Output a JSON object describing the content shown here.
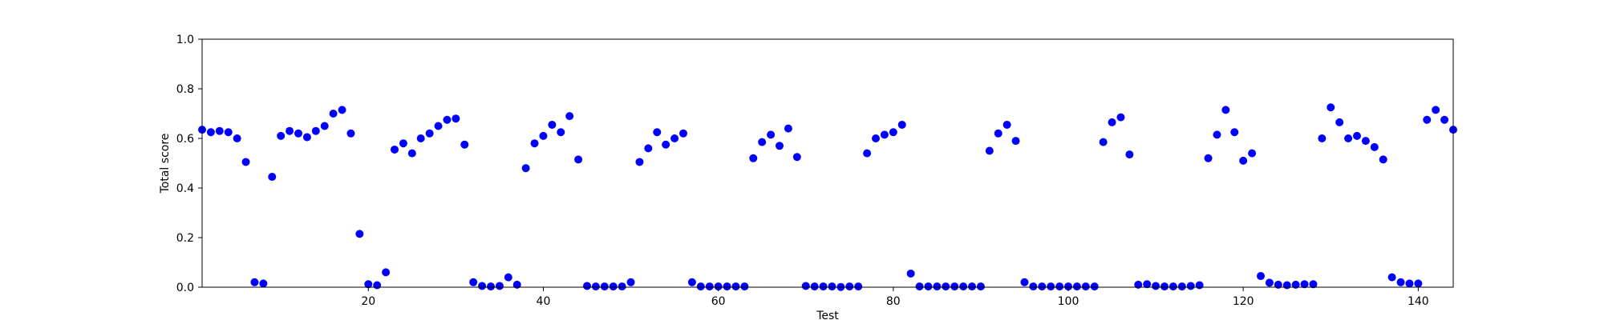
{
  "chart_data": {
    "type": "scatter",
    "title": "",
    "xlabel": "Test",
    "ylabel": "Total score",
    "xlim": [
      1,
      144
    ],
    "ylim": [
      0,
      1.0
    ],
    "xticks": [
      20,
      40,
      60,
      80,
      100,
      120,
      140
    ],
    "yticks": [
      0.0,
      0.2,
      0.4,
      0.6,
      0.8,
      1.0
    ],
    "xtick_labels": [
      "20",
      "40",
      "60",
      "80",
      "100",
      "120",
      "140"
    ],
    "ytick_labels": [
      "0.0",
      "0.2",
      "0.4",
      "0.6",
      "0.8",
      "1.0"
    ],
    "grid": false,
    "marker_color": "#0000ff",
    "series": [
      {
        "x": [
          1,
          2,
          3,
          4,
          5,
          6,
          7,
          8,
          9,
          10,
          11,
          12,
          13,
          14,
          15,
          16,
          17,
          18,
          19,
          20,
          21,
          22,
          23,
          24,
          25,
          26,
          27,
          28,
          29,
          30,
          31,
          32,
          33,
          34,
          35,
          36,
          37,
          38,
          39,
          40,
          41,
          42,
          43,
          44,
          45,
          46,
          47,
          48,
          49,
          50,
          51,
          52,
          53,
          54,
          55,
          56,
          57,
          58,
          59,
          60,
          61,
          62,
          63,
          64,
          65,
          66,
          67,
          68,
          69,
          70,
          71,
          72,
          73,
          74,
          75,
          76,
          77,
          78,
          79,
          80,
          81,
          82,
          83,
          84,
          85,
          86,
          87,
          88,
          89,
          90,
          91,
          92,
          93,
          94,
          95,
          96,
          97,
          98,
          99,
          100,
          101,
          102,
          103,
          104,
          105,
          106,
          107,
          108,
          109,
          110,
          111,
          112,
          113,
          114,
          115,
          116,
          117,
          118,
          119,
          120,
          121,
          122,
          123,
          124,
          125,
          126,
          127,
          128,
          129,
          130,
          131,
          132,
          133,
          134,
          135,
          136,
          137,
          138,
          139,
          140,
          141,
          142,
          143,
          144
        ],
        "y": [
          0.635,
          0.625,
          0.63,
          0.625,
          0.6,
          0.505,
          0.02,
          0.015,
          0.445,
          0.61,
          0.63,
          0.62,
          0.605,
          0.63,
          0.65,
          0.7,
          0.715,
          0.62,
          0.215,
          0.012,
          0.008,
          0.06,
          0.555,
          0.58,
          0.54,
          0.6,
          0.62,
          0.65,
          0.675,
          0.68,
          0.575,
          0.02,
          0.005,
          0.003,
          0.005,
          0.04,
          0.01,
          0.48,
          0.58,
          0.61,
          0.655,
          0.625,
          0.69,
          0.515,
          0.005,
          0.003,
          0.003,
          0.003,
          0.003,
          0.02,
          0.505,
          0.56,
          0.625,
          0.575,
          0.6,
          0.62,
          0.02,
          0.003,
          0.003,
          0.003,
          0.003,
          0.003,
          0.003,
          0.52,
          0.585,
          0.615,
          0.57,
          0.64,
          0.525,
          0.005,
          0.003,
          0.003,
          0.003,
          0.001,
          0.003,
          0.003,
          0.54,
          0.6,
          0.615,
          0.625,
          0.655,
          0.055,
          0.003,
          0.003,
          0.003,
          0.003,
          0.003,
          0.003,
          0.003,
          0.003,
          0.55,
          0.62,
          0.655,
          0.59,
          0.02,
          0.003,
          0.003,
          0.003,
          0.003,
          0.003,
          0.003,
          0.003,
          0.003,
          0.585,
          0.665,
          0.685,
          0.535,
          0.01,
          0.012,
          0.005,
          0.003,
          0.003,
          0.003,
          0.005,
          0.008,
          0.52,
          0.615,
          0.715,
          0.625,
          0.51,
          0.54,
          0.045,
          0.018,
          0.01,
          0.008,
          0.01,
          0.012,
          0.012,
          0.6,
          0.725,
          0.665,
          0.6,
          0.61,
          0.59,
          0.565,
          0.515,
          0.04,
          0.02,
          0.015,
          0.015,
          0.675,
          0.715,
          0.675,
          0.635
        ]
      }
    ]
  }
}
